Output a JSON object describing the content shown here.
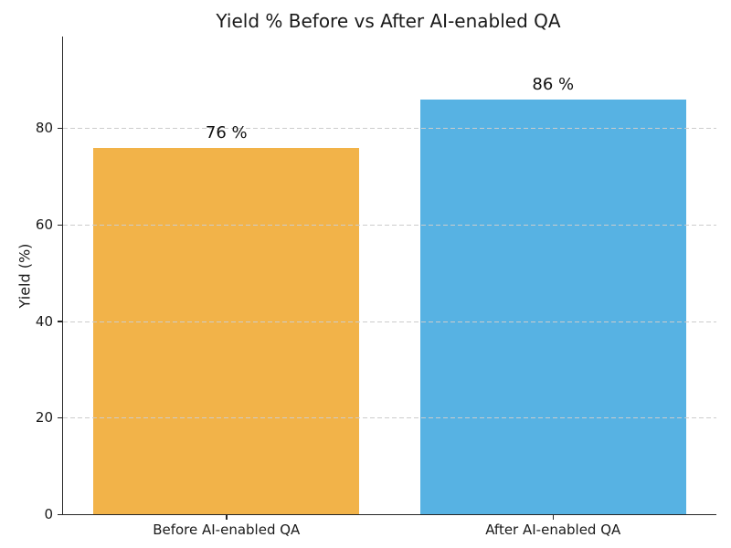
{
  "chart_data": {
    "type": "bar",
    "title": "Yield % Before vs After AI-enabled QA",
    "xlabel": "",
    "ylabel": "Yield (%)",
    "categories": [
      "Before AI-enabled QA",
      "After AI-enabled QA"
    ],
    "values": [
      76,
      86
    ],
    "value_labels": [
      "76 %",
      "86 %"
    ],
    "bar_colors": [
      "#F2B349",
      "#57B2E3"
    ],
    "yticks": [
      0,
      20,
      40,
      60,
      80
    ],
    "ylim": [
      0,
      99
    ],
    "grid": "horizontal dashed gridlines at y ticks, drawn above bars",
    "grid_color": "#cccccc",
    "axis_color": "#262626",
    "text_color": "#1a1a1a",
    "background_color": "#ffffff",
    "legend": "none",
    "spines": "left and bottom only"
  }
}
